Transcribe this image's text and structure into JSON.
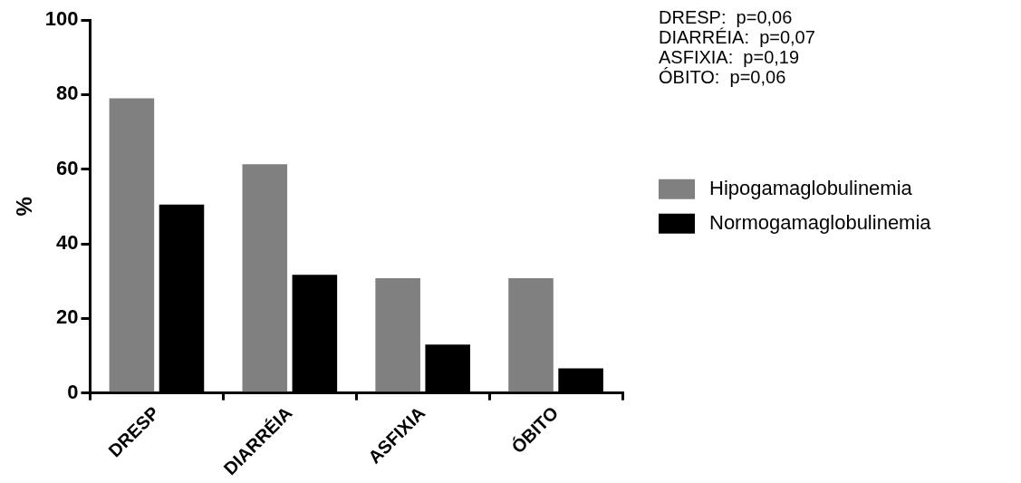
{
  "chart_data": {
    "type": "bar",
    "ylabel": "%",
    "categories": [
      "DRESP",
      "DIARRÉIA",
      "ASFIXIA",
      "ÓBITO"
    ],
    "series": [
      {
        "name": "Hipogamaglobulinemia",
        "color": "#808080",
        "values": [
          79,
          61.3,
          30.8,
          30.8
        ]
      },
      {
        "name": "Normogamaglobulinemia",
        "color": "#000000",
        "values": [
          50.5,
          31.7,
          13,
          6.6
        ]
      }
    ],
    "ylim": [
      0,
      100
    ],
    "yticks": [
      0,
      20,
      40,
      60,
      80,
      100
    ],
    "grid": false,
    "legend": "right",
    "annotations": [
      "DRESP:  p=0,06",
      "DIARRÉIA:  p=0,07",
      "ASFIXIA:  p=0,19",
      "ÓBITO:  p=0,06"
    ]
  }
}
